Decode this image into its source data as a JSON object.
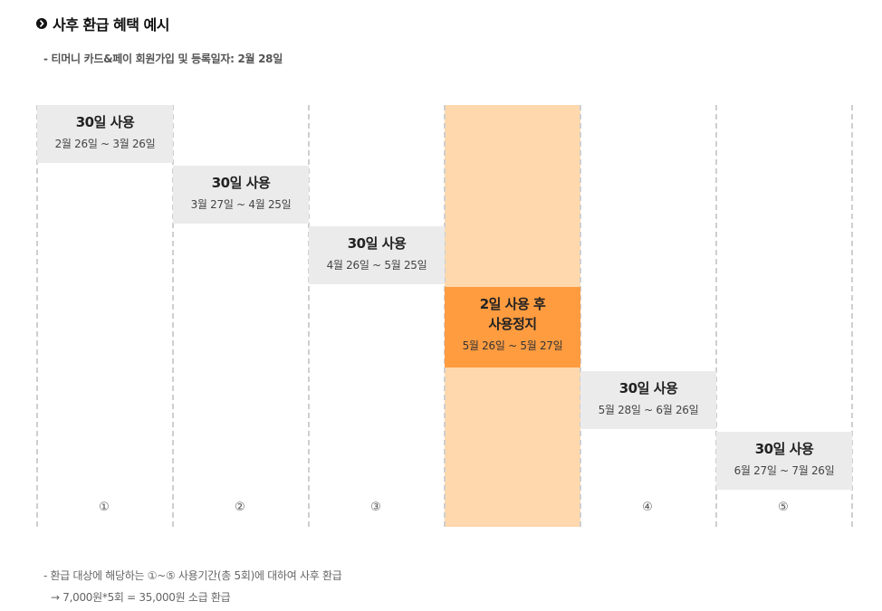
{
  "heading": {
    "title": "사후 환급 혜택 예시"
  },
  "subtitle": "- 티머니 카드&페이 회원가입 및 등록일자: 2월 28일",
  "periods": [
    {
      "label": "30일 사용",
      "dates": "2월 26일 ~ 3월 26일",
      "number": "①"
    },
    {
      "label": "30일 사용",
      "dates": "3월 27일 ~ 4월 25일",
      "number": "②"
    },
    {
      "label": "30일 사용",
      "dates": "4월 26일 ~ 5월 25일",
      "number": "③"
    },
    {
      "label_line1": "2일 사용 후",
      "label_line2": "사용정지",
      "dates": "5월 26일 ~ 5월 27일",
      "number": ""
    },
    {
      "label": "30일 사용",
      "dates": "5월 28일 ~ 6월 26일",
      "number": "④"
    },
    {
      "label": "30일 사용",
      "dates": "6월 27일 ~ 7월 26일",
      "number": "⑤"
    }
  ],
  "colors": {
    "box_gray": "#ebebeb",
    "suspend_box": "#ff9c40",
    "suspend_column": "#ffd8ad",
    "dashed_line": "#cfcfcf"
  },
  "notes": {
    "line1": "- 환급 대상에 해당하는 ①~⑤ 사용기간(총 5회)에 대하여 사후 환급",
    "line2": "→ 7,000원*5회 = 35,000원 소급 환급"
  }
}
